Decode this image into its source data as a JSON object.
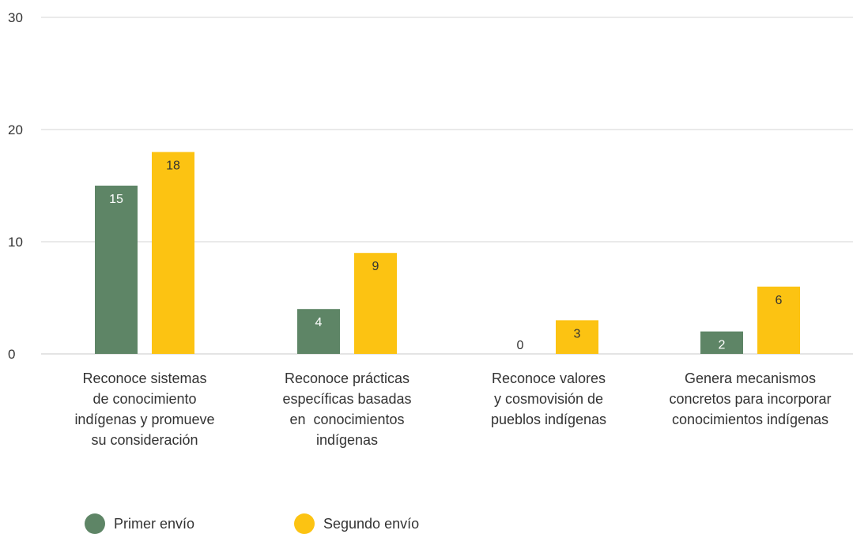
{
  "chart_data": {
    "type": "bar",
    "categories": [
      [
        "Reconoce sistemas",
        "de conocimiento",
        "indígenas y promueve",
        "su consideración"
      ],
      [
        "Reconoce prácticas",
        "específicas basadas",
        "en  conocimientos",
        "indígenas"
      ],
      [
        "Reconoce valores",
        "y cosmovisión de",
        "pueblos indígenas"
      ],
      [
        "Genera mecanismos",
        "concretos para incorporar",
        "conocimientos indígenas"
      ]
    ],
    "series": [
      {
        "name": "Primer envío",
        "color": "#5e8566",
        "label_color": "#ffffff",
        "values": [
          15,
          4,
          0,
          2
        ]
      },
      {
        "name": "Segundo envío",
        "color": "#fcc312",
        "label_color": "#333333",
        "values": [
          18,
          9,
          3,
          6
        ]
      }
    ],
    "y_ticks": [
      "0",
      "10",
      "20",
      "30"
    ],
    "ylim": [
      0,
      30
    ],
    "grid": true,
    "legend_position": "bottom-left",
    "data_labels": true
  }
}
